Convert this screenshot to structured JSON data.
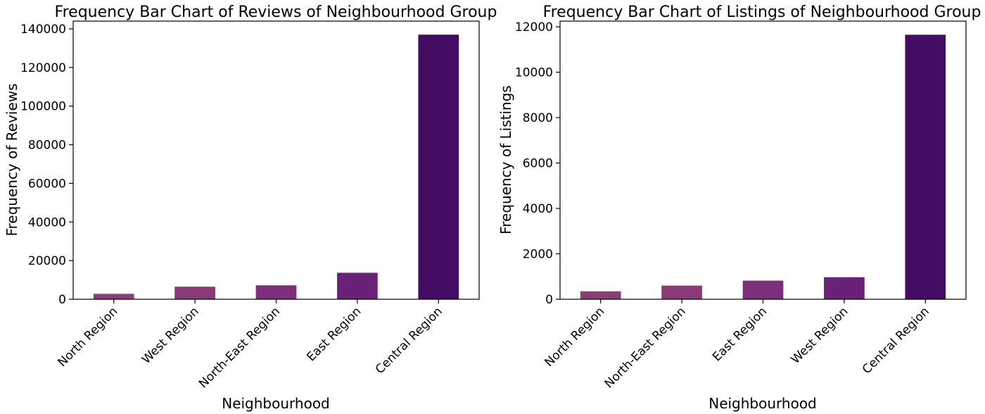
{
  "chart_data": [
    {
      "type": "bar",
      "title": "Frequency Bar Chart of Reviews of Neighbourhood Group",
      "xlabel": "Neighbourhood",
      "ylabel": "Frequency of Reviews",
      "categories": [
        "North Region",
        "West Region",
        "North-East Region",
        "East Region",
        "Central Region"
      ],
      "values": [
        2800,
        6500,
        7200,
        13700,
        137000
      ],
      "ylim": [
        0,
        144000
      ],
      "yticks": [
        0,
        20000,
        40000,
        60000,
        80000,
        100000,
        120000,
        140000
      ],
      "colors": [
        "#8c3d77",
        "#8b3a78",
        "#7e2f79",
        "#6a2279",
        "#440c63"
      ],
      "grid": false
    },
    {
      "type": "bar",
      "title": "Frequency Bar Chart of Listings of Neighbourhood Group",
      "xlabel": "Neighbourhood",
      "ylabel": "Frequency of Listings",
      "categories": [
        "North Region",
        "North-East Region",
        "East Region",
        "West Region",
        "Central Region"
      ],
      "values": [
        350,
        600,
        820,
        970,
        11650
      ],
      "ylim": [
        0,
        12250
      ],
      "yticks": [
        0,
        2000,
        4000,
        6000,
        8000,
        10000,
        12000
      ],
      "colors": [
        "#8c3d77",
        "#8b3a78",
        "#7e2f79",
        "#6a2279",
        "#440c63"
      ],
      "grid": false
    }
  ]
}
